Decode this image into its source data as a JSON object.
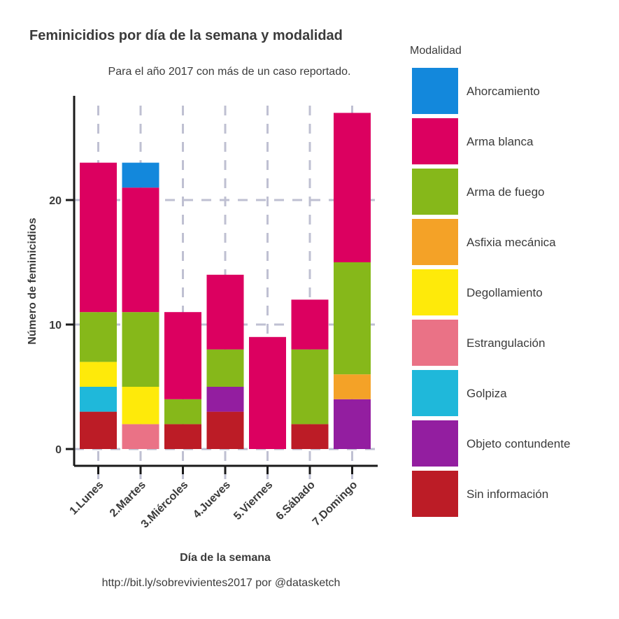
{
  "chart_data": {
    "type": "bar",
    "stacked": true,
    "title": "Feminicidios por día de la semana y modalidad",
    "subtitle": "Para el año 2017 con más de un caso reportado.",
    "xlabel": "Día de la semana",
    "ylabel": "Número de feminicidios",
    "caption": "http://bit.ly/sobrevivientes2017 por @datasketch",
    "ylim": [
      0,
      28
    ],
    "yticks": [
      0,
      10,
      20
    ],
    "grid": true,
    "legend_title": "Modalidad",
    "legend_position": "right",
    "categories": [
      "1.Lunes",
      "2.Martes",
      "3.Miércoles",
      "4.Jueves",
      "5.Viernes",
      "6.Sábado",
      "7.Domingo"
    ],
    "series": [
      {
        "name": "Ahorcamiento",
        "color": "#1388dc",
        "values": [
          0,
          2,
          0,
          0,
          0,
          0,
          0
        ]
      },
      {
        "name": "Arma blanca",
        "color": "#dc0060",
        "values": [
          12,
          10,
          7,
          6,
          9,
          4,
          12
        ]
      },
      {
        "name": "Arma de fuego",
        "color": "#86b81a",
        "values": [
          4,
          6,
          2,
          3,
          0,
          6,
          9
        ]
      },
      {
        "name": "Asfixia mecánica",
        "color": "#f4a227",
        "values": [
          0,
          0,
          0,
          0,
          0,
          0,
          2
        ]
      },
      {
        "name": "Degollamiento",
        "color": "#feea0a",
        "values": [
          2,
          3,
          0,
          0,
          0,
          0,
          0
        ]
      },
      {
        "name": "Estrangulación",
        "color": "#ea7286",
        "values": [
          0,
          2,
          0,
          0,
          0,
          0,
          0
        ]
      },
      {
        "name": "Golpiza",
        "color": "#1fb8da",
        "values": [
          2,
          0,
          0,
          0,
          0,
          0,
          0
        ]
      },
      {
        "name": "Objeto contundente",
        "color": "#931ea0",
        "values": [
          0,
          0,
          0,
          2,
          0,
          0,
          4
        ]
      },
      {
        "name": "Sin información",
        "color": "#bc1c26",
        "values": [
          3,
          0,
          2,
          3,
          0,
          2,
          0
        ]
      }
    ]
  }
}
